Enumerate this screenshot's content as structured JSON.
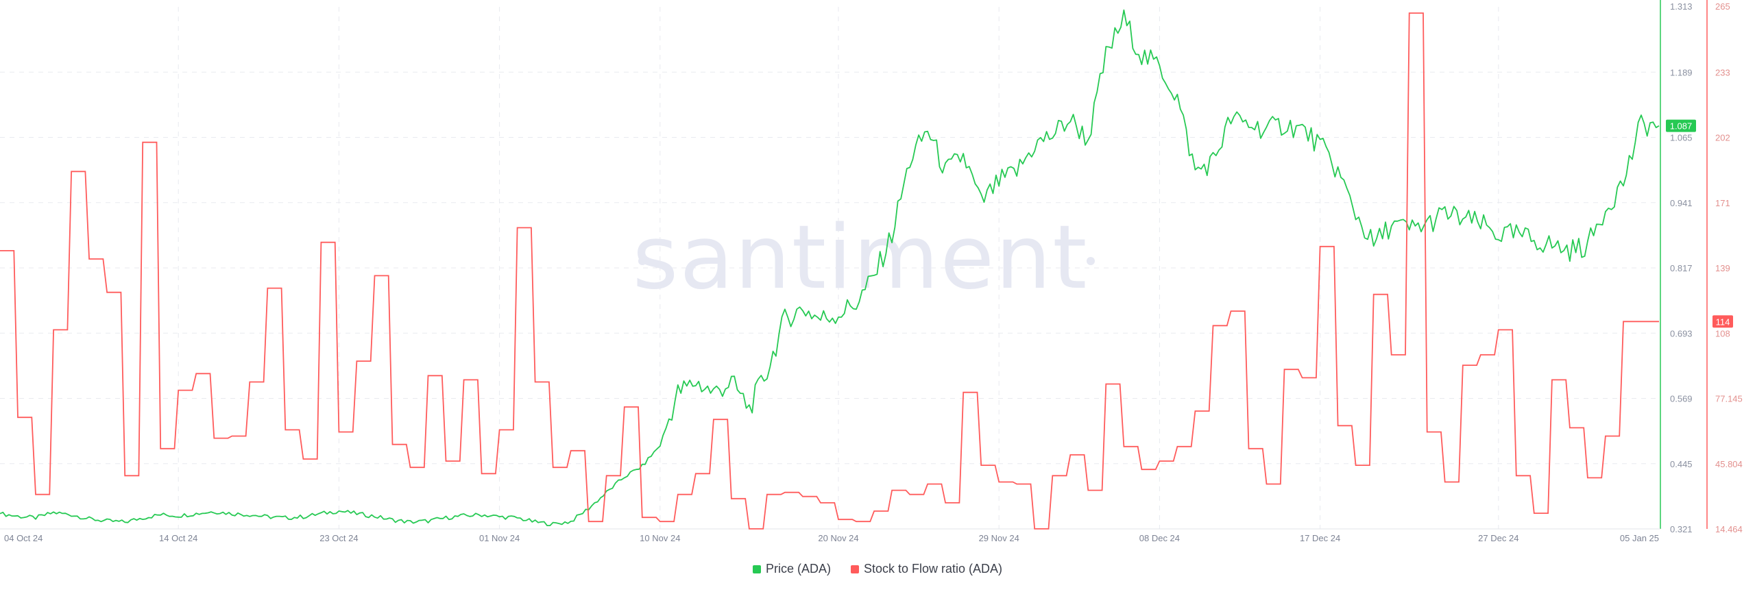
{
  "brand": {
    "watermark": "santiment"
  },
  "chart_data": {
    "type": "line",
    "title": "",
    "xlabel": "",
    "ylabel": "",
    "grid": true,
    "legend_position": "bottom-center",
    "x_ticks": [
      "04 Oct 24",
      "14 Oct 24",
      "23 Oct 24",
      "01 Nov 24",
      "10 Nov 24",
      "20 Nov 24",
      "29 Nov 24",
      "08 Dec 24",
      "17 Dec 24",
      "27 Dec 24",
      "05 Jan 25"
    ],
    "x_range": [
      "2024-10-04",
      "2025-01-05"
    ],
    "y_left": {
      "label": "",
      "ticks": [
        "1.313",
        "1.189",
        "1.065",
        "0.941",
        "0.817",
        "0.693",
        "0.569",
        "0.445",
        "0.321"
      ],
      "range": [
        0.321,
        1.313
      ]
    },
    "y_right": {
      "label": "",
      "ticks": [
        "265",
        "233",
        "202",
        "171",
        "139",
        "108",
        "77.145",
        "45.804",
        "14.464"
      ],
      "range": [
        14.464,
        265
      ]
    },
    "current_value_labels": {
      "price": "1.087",
      "stock_to_flow": "114"
    },
    "series": [
      {
        "name": "Price (ADA)",
        "axis": "left",
        "color": "#26c953",
        "points": [
          [
            "2024-10-04",
            0.35
          ],
          [
            "2024-10-05",
            0.345
          ],
          [
            "2024-10-06",
            0.342
          ],
          [
            "2024-10-07",
            0.352
          ],
          [
            "2024-10-08",
            0.348
          ],
          [
            "2024-10-09",
            0.34
          ],
          [
            "2024-10-10",
            0.336
          ],
          [
            "2024-10-11",
            0.334
          ],
          [
            "2024-10-12",
            0.342
          ],
          [
            "2024-10-13",
            0.348
          ],
          [
            "2024-10-14",
            0.346
          ],
          [
            "2024-10-15",
            0.35
          ],
          [
            "2024-10-16",
            0.354
          ],
          [
            "2024-10-17",
            0.35
          ],
          [
            "2024-10-18",
            0.348
          ],
          [
            "2024-10-19",
            0.344
          ],
          [
            "2024-10-20",
            0.342
          ],
          [
            "2024-10-21",
            0.344
          ],
          [
            "2024-10-22",
            0.35
          ],
          [
            "2024-10-23",
            0.355
          ],
          [
            "2024-10-24",
            0.35
          ],
          [
            "2024-10-25",
            0.345
          ],
          [
            "2024-10-26",
            0.338
          ],
          [
            "2024-10-27",
            0.334
          ],
          [
            "2024-10-28",
            0.336
          ],
          [
            "2024-10-29",
            0.342
          ],
          [
            "2024-10-30",
            0.346
          ],
          [
            "2024-10-31",
            0.348
          ],
          [
            "2024-11-01",
            0.344
          ],
          [
            "2024-11-02",
            0.342
          ],
          [
            "2024-11-03",
            0.334
          ],
          [
            "2024-11-04",
            0.33
          ],
          [
            "2024-11-05",
            0.335
          ],
          [
            "2024-11-06",
            0.36
          ],
          [
            "2024-11-07",
            0.39
          ],
          [
            "2024-11-08",
            0.42
          ],
          [
            "2024-11-09",
            0.44
          ],
          [
            "2024-11-10",
            0.48
          ],
          [
            "2024-11-11",
            0.58
          ],
          [
            "2024-11-12",
            0.6
          ],
          [
            "2024-11-13",
            0.58
          ],
          [
            "2024-11-14",
            0.6
          ],
          [
            "2024-11-15",
            0.55
          ],
          [
            "2024-11-16",
            0.62
          ],
          [
            "2024-11-17",
            0.72
          ],
          [
            "2024-11-18",
            0.74
          ],
          [
            "2024-11-19",
            0.72
          ],
          [
            "2024-11-20",
            0.73
          ],
          [
            "2024-11-21",
            0.75
          ],
          [
            "2024-11-22",
            0.8
          ],
          [
            "2024-11-23",
            0.88
          ],
          [
            "2024-11-24",
            1.02
          ],
          [
            "2024-11-25",
            1.08
          ],
          [
            "2024-11-26",
            1.0
          ],
          [
            "2024-11-27",
            1.03
          ],
          [
            "2024-11-28",
            0.94
          ],
          [
            "2024-11-29",
            0.98
          ],
          [
            "2024-11-30",
            1.0
          ],
          [
            "2024-12-01",
            1.05
          ],
          [
            "2024-12-02",
            1.07
          ],
          [
            "2024-12-03",
            1.1
          ],
          [
            "2024-12-04",
            1.06
          ],
          [
            "2024-12-05",
            1.22
          ],
          [
            "2024-12-06",
            1.29
          ],
          [
            "2024-12-07",
            1.22
          ],
          [
            "2024-12-08",
            1.2
          ],
          [
            "2024-12-09",
            1.14
          ],
          [
            "2024-12-10",
            1.0
          ],
          [
            "2024-12-11",
            1.02
          ],
          [
            "2024-12-12",
            1.1
          ],
          [
            "2024-12-13",
            1.09
          ],
          [
            "2024-12-14",
            1.08
          ],
          [
            "2024-12-15",
            1.09
          ],
          [
            "2024-12-16",
            1.08
          ],
          [
            "2024-12-17",
            1.05
          ],
          [
            "2024-12-18",
            1.0
          ],
          [
            "2024-12-19",
            0.92
          ],
          [
            "2024-12-20",
            0.86
          ],
          [
            "2024-12-21",
            0.9
          ],
          [
            "2024-12-22",
            0.89
          ],
          [
            "2024-12-23",
            0.9
          ],
          [
            "2024-12-24",
            0.92
          ],
          [
            "2024-12-25",
            0.91
          ],
          [
            "2024-12-26",
            0.9
          ],
          [
            "2024-12-27",
            0.88
          ],
          [
            "2024-12-28",
            0.88
          ],
          [
            "2024-12-29",
            0.87
          ],
          [
            "2024-12-30",
            0.86
          ],
          [
            "2024-12-31",
            0.85
          ],
          [
            "2025-01-01",
            0.86
          ],
          [
            "2025-01-02",
            0.93
          ],
          [
            "2025-01-03",
            0.98
          ],
          [
            "2025-01-04",
            1.09
          ],
          [
            "2025-01-05",
            1.087
          ]
        ]
      },
      {
        "name": "Stock to Flow ratio (ADA)",
        "axis": "right",
        "color": "#ff5b5b",
        "points": [
          [
            "2024-10-04",
            148
          ],
          [
            "2024-10-05",
            68
          ],
          [
            "2024-10-06",
            31
          ],
          [
            "2024-10-07",
            110
          ],
          [
            "2024-10-08",
            186
          ],
          [
            "2024-10-09",
            144
          ],
          [
            "2024-10-10",
            128
          ],
          [
            "2024-10-11",
            40
          ],
          [
            "2024-10-12",
            200
          ],
          [
            "2024-10-13",
            53
          ],
          [
            "2024-10-14",
            81
          ],
          [
            "2024-10-15",
            89
          ],
          [
            "2024-10-16",
            58
          ],
          [
            "2024-10-17",
            59
          ],
          [
            "2024-10-18",
            85
          ],
          [
            "2024-10-19",
            130
          ],
          [
            "2024-10-20",
            62
          ],
          [
            "2024-10-21",
            48
          ],
          [
            "2024-10-22",
            152
          ],
          [
            "2024-10-23",
            61
          ],
          [
            "2024-10-24",
            95
          ],
          [
            "2024-10-25",
            136
          ],
          [
            "2024-10-26",
            55
          ],
          [
            "2024-10-27",
            44
          ],
          [
            "2024-10-28",
            88
          ],
          [
            "2024-10-29",
            47
          ],
          [
            "2024-10-30",
            86
          ],
          [
            "2024-10-31",
            41
          ],
          [
            "2024-11-01",
            62
          ],
          [
            "2024-11-02",
            159
          ],
          [
            "2024-11-03",
            85
          ],
          [
            "2024-11-04",
            44
          ],
          [
            "2024-11-05",
            52
          ],
          [
            "2024-11-06",
            18
          ],
          [
            "2024-11-07",
            40
          ],
          [
            "2024-11-08",
            73
          ],
          [
            "2024-11-09",
            20
          ],
          [
            "2024-11-10",
            18
          ],
          [
            "2024-11-11",
            31
          ],
          [
            "2024-11-12",
            41
          ],
          [
            "2024-11-13",
            67
          ],
          [
            "2024-11-14",
            29
          ],
          [
            "2024-11-15",
            14.5
          ],
          [
            "2024-11-16",
            31
          ],
          [
            "2024-11-17",
            32
          ],
          [
            "2024-11-18",
            30
          ],
          [
            "2024-11-19",
            27
          ],
          [
            "2024-11-20",
            19
          ],
          [
            "2024-11-21",
            18
          ],
          [
            "2024-11-22",
            23
          ],
          [
            "2024-11-23",
            33
          ],
          [
            "2024-11-24",
            31
          ],
          [
            "2024-11-25",
            36
          ],
          [
            "2024-11-26",
            27
          ],
          [
            "2024-11-27",
            80
          ],
          [
            "2024-11-28",
            45
          ],
          [
            "2024-11-29",
            37
          ],
          [
            "2024-11-30",
            36
          ],
          [
            "2024-12-01",
            14.5
          ],
          [
            "2024-12-02",
            40
          ],
          [
            "2024-12-03",
            50
          ],
          [
            "2024-12-04",
            33
          ],
          [
            "2024-12-05",
            84
          ],
          [
            "2024-12-06",
            54
          ],
          [
            "2024-12-07",
            43
          ],
          [
            "2024-12-08",
            47
          ],
          [
            "2024-12-09",
            54
          ],
          [
            "2024-12-10",
            71
          ],
          [
            "2024-12-11",
            112
          ],
          [
            "2024-12-12",
            119
          ],
          [
            "2024-12-13",
            53
          ],
          [
            "2024-12-14",
            36
          ],
          [
            "2024-12-15",
            91
          ],
          [
            "2024-12-16",
            87
          ],
          [
            "2024-12-17",
            150
          ],
          [
            "2024-12-18",
            64
          ],
          [
            "2024-12-19",
            45
          ],
          [
            "2024-12-20",
            127
          ],
          [
            "2024-12-21",
            98
          ],
          [
            "2024-12-22",
            262
          ],
          [
            "2024-12-23",
            61
          ],
          [
            "2024-12-24",
            37
          ],
          [
            "2024-12-25",
            93
          ],
          [
            "2024-12-26",
            98
          ],
          [
            "2024-12-27",
            110
          ],
          [
            "2024-12-28",
            40
          ],
          [
            "2024-12-29",
            22
          ],
          [
            "2024-12-30",
            86
          ],
          [
            "2024-12-31",
            63
          ],
          [
            "2025-01-01",
            39
          ],
          [
            "2025-01-02",
            59
          ],
          [
            "2025-01-03",
            114
          ],
          [
            "2025-01-04",
            114
          ],
          [
            "2025-01-05",
            114
          ]
        ]
      }
    ]
  }
}
